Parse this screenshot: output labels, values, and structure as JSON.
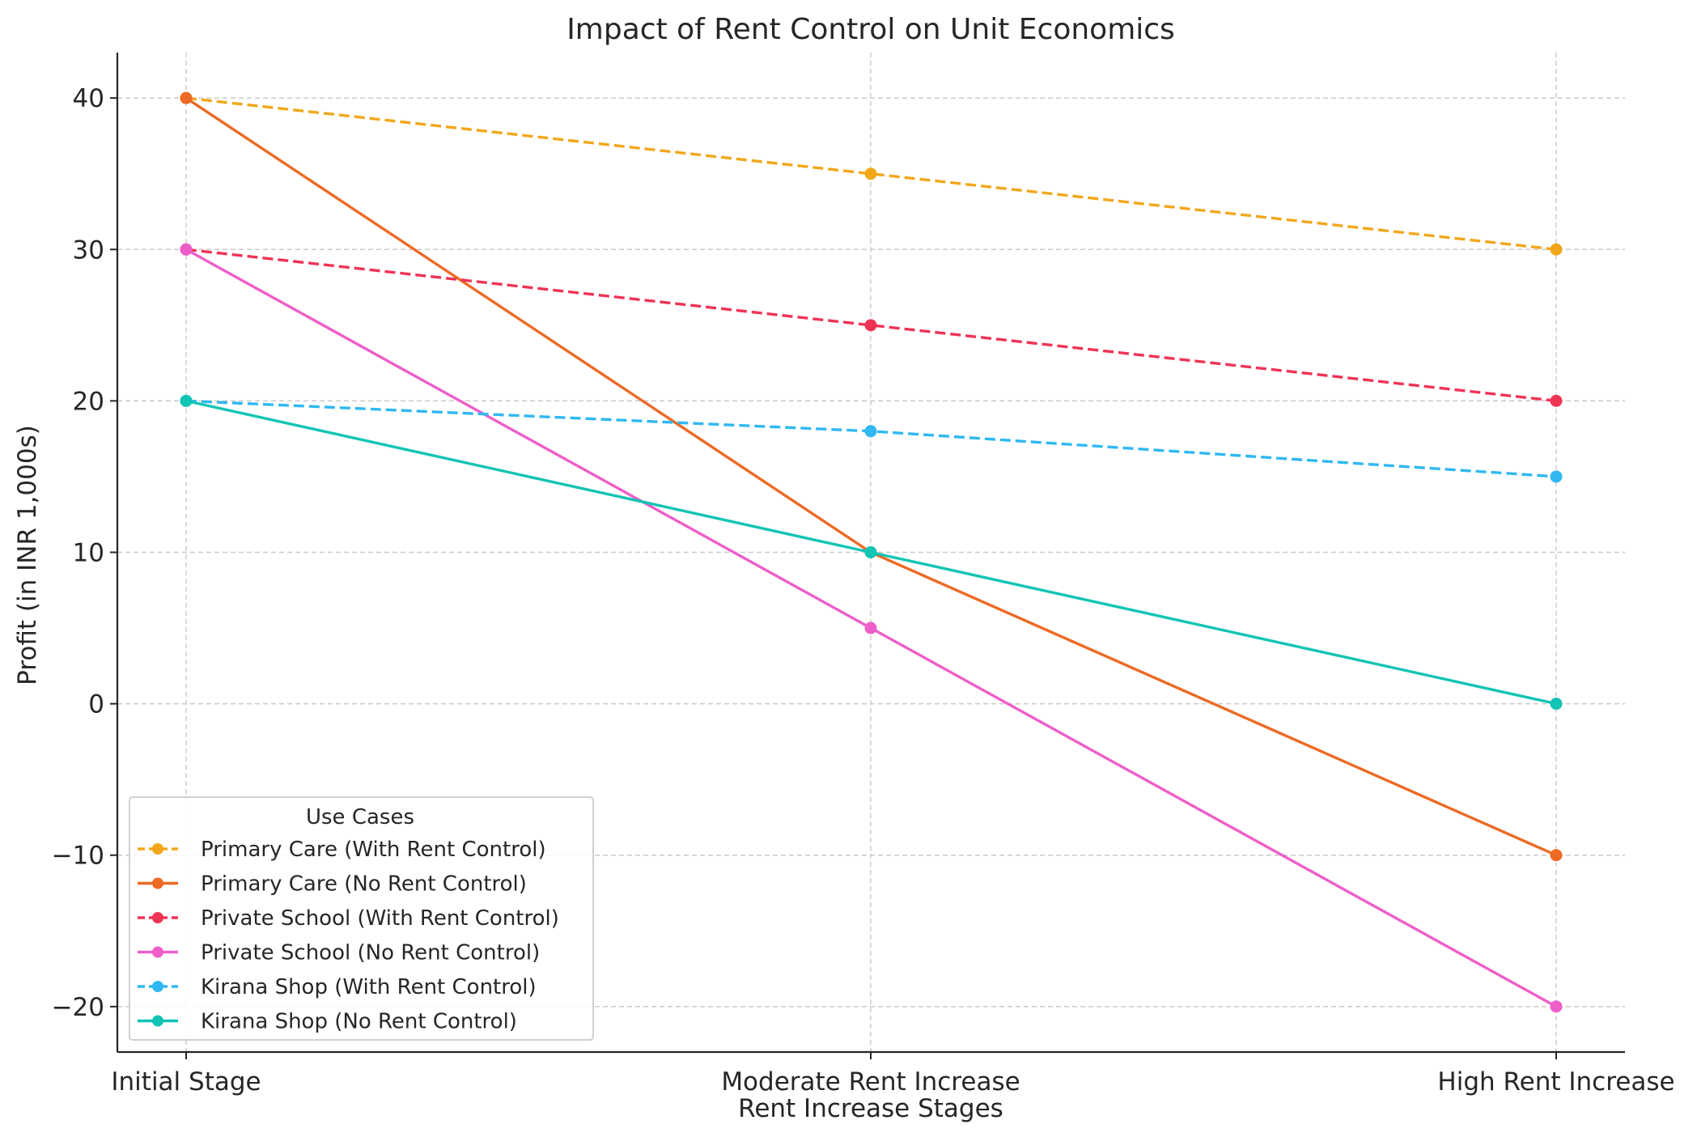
{
  "chart_data": {
    "type": "line",
    "title": "Impact of Rent Control on Unit Economics",
    "xlabel": "Rent Increase Stages",
    "ylabel": "Profit (in INR 1,000s)",
    "categories": [
      "Initial Stage",
      "Moderate Rent Increase",
      "High Rent Increase"
    ],
    "ylim": [
      -23,
      43
    ],
    "yticks": [
      -20,
      -10,
      0,
      10,
      20,
      30,
      40
    ],
    "ytick_labels": [
      "−20",
      "−10",
      "0",
      "10",
      "20",
      "30",
      "40"
    ],
    "grid": true,
    "legend": {
      "title": "Use Cases",
      "position": "lower-left"
    },
    "series": [
      {
        "name": "Primary Care (With Rent Control)",
        "values": [
          40,
          35,
          30
        ],
        "color": "#f2a71b",
        "dashed": true
      },
      {
        "name": "Primary Care (No Rent Control)",
        "values": [
          40,
          10,
          -10
        ],
        "color": "#ec6a24",
        "dashed": false
      },
      {
        "name": "Private School (With Rent Control)",
        "values": [
          30,
          25,
          20
        ],
        "color": "#ef3355",
        "dashed": true
      },
      {
        "name": "Private School (No Rent Control)",
        "values": [
          30,
          5,
          -20
        ],
        "color": "#ee5ec9",
        "dashed": false
      },
      {
        "name": "Kirana Shop (With Rent Control)",
        "values": [
          20,
          18,
          15
        ],
        "color": "#2fb8f2",
        "dashed": true
      },
      {
        "name": "Kirana Shop (No Rent Control)",
        "values": [
          20,
          10,
          0
        ],
        "color": "#12c4b4",
        "dashed": false
      }
    ]
  }
}
